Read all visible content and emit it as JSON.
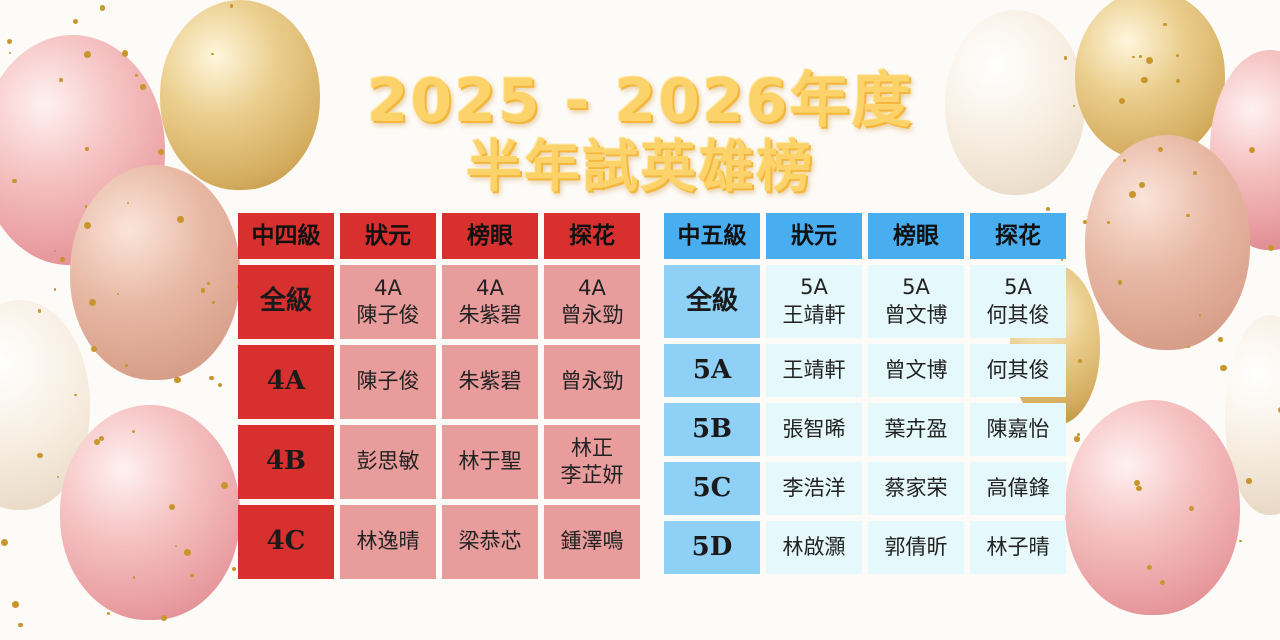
{
  "title": {
    "line1": "2025 - 2026年度",
    "line2": "半年試英雄榜"
  },
  "colors": {
    "f4_header": "#d7302f",
    "f4_cell": "#e89c9c",
    "f5_header": "#48aef0",
    "f5_label": "#8fd0f6",
    "f5_cell": "#e5f8fc",
    "title": "#fcd36a"
  },
  "form4": {
    "headers": [
      "中四級",
      "狀元",
      "榜眼",
      "探花"
    ],
    "rows": [
      {
        "label": "全級",
        "cells": [
          [
            "4A",
            "陳子俊"
          ],
          [
            "4A",
            "朱紫碧"
          ],
          [
            "4A",
            "曾永勁"
          ]
        ]
      },
      {
        "label": "4A",
        "cells": [
          [
            "陳子俊"
          ],
          [
            "朱紫碧"
          ],
          [
            "曾永勁"
          ]
        ]
      },
      {
        "label": "4B",
        "cells": [
          [
            "彭思敏"
          ],
          [
            "林于聖"
          ],
          [
            "林正",
            "李芷妍"
          ]
        ]
      },
      {
        "label": "4C",
        "cells": [
          [
            "林逸晴"
          ],
          [
            "梁恭芯"
          ],
          [
            "鍾澤鳴"
          ]
        ]
      }
    ]
  },
  "form5": {
    "headers": [
      "中五級",
      "狀元",
      "榜眼",
      "探花"
    ],
    "rows": [
      {
        "label": "全級",
        "cells": [
          [
            "5A",
            "王靖軒"
          ],
          [
            "5A",
            "曾文博"
          ],
          [
            "5A",
            "何其俊"
          ]
        ]
      },
      {
        "label": "5A",
        "cells": [
          [
            "王靖軒"
          ],
          [
            "曾文博"
          ],
          [
            "何其俊"
          ]
        ]
      },
      {
        "label": "5B",
        "cells": [
          [
            "張智晞"
          ],
          [
            "葉卉盈"
          ],
          [
            "陳嘉怡"
          ]
        ]
      },
      {
        "label": "5C",
        "cells": [
          [
            "李浩洋"
          ],
          [
            "蔡家荣"
          ],
          [
            "高偉鋒"
          ]
        ]
      },
      {
        "label": "5D",
        "cells": [
          [
            "林啟灝"
          ],
          [
            "郭倩昕"
          ],
          [
            "林子晴"
          ]
        ]
      }
    ]
  }
}
